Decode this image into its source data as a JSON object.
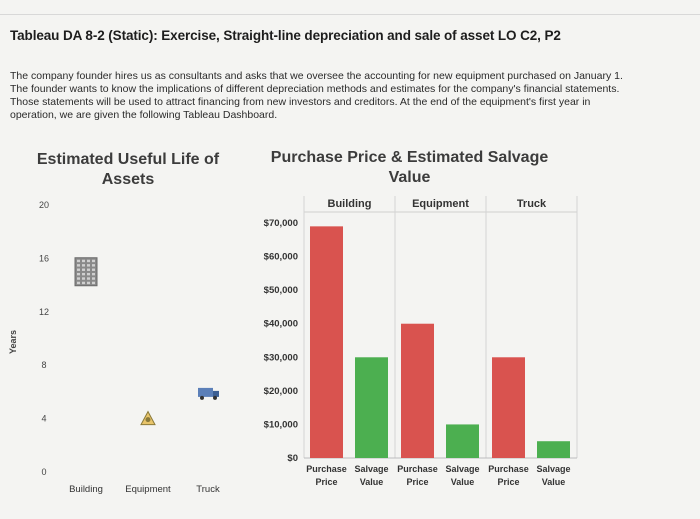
{
  "page": {
    "title": "Tableau DA 8-2 (Static): Exercise, Straight-line depreciation and sale of asset LO C2, P2",
    "intro": [
      "The company founder hires us as consultants and asks that we oversee the accounting for new equipment purchased on January 1.",
      "The founder wants to know the implications of different depreciation methods and estimates for the company's financial statements.",
      "Those statements will be used to attract financing from new investors and creditors. At the end of the equipment's first year in",
      "operation, we are given the following Tableau Dashboard."
    ]
  },
  "chart_data": [
    {
      "type": "scatter",
      "title": "Estimated Useful Life of Assets",
      "ylabel": "Years",
      "ylim": [
        0,
        20
      ],
      "yticks": [
        "0",
        "4",
        "8",
        "12",
        "16",
        "20"
      ],
      "categories": [
        "Building",
        "Equipment",
        "Truck"
      ],
      "values": [
        15,
        4,
        6
      ],
      "icons": [
        "building-icon",
        "equipment-icon",
        "truck-icon"
      ]
    },
    {
      "type": "bar",
      "title": "Purchase Price & Estimated Salvage Value",
      "panels": [
        "Building",
        "Equipment",
        "Truck"
      ],
      "categories": [
        [
          "Purchase",
          "Price"
        ],
        [
          "Salvage",
          "Value"
        ]
      ],
      "ylim": [
        0,
        70000
      ],
      "yticks": [
        "$0",
        "$10,000",
        "$20,000",
        "$30,000",
        "$40,000",
        "$50,000",
        "$60,000",
        "$70,000"
      ],
      "series": [
        {
          "values": [
            69000,
            30000
          ]
        },
        {
          "values": [
            40000,
            10000
          ]
        },
        {
          "values": [
            30000,
            5000
          ]
        }
      ],
      "colors": {
        "purchase": "#d9534f",
        "salvage": "#4caf50"
      }
    }
  ]
}
